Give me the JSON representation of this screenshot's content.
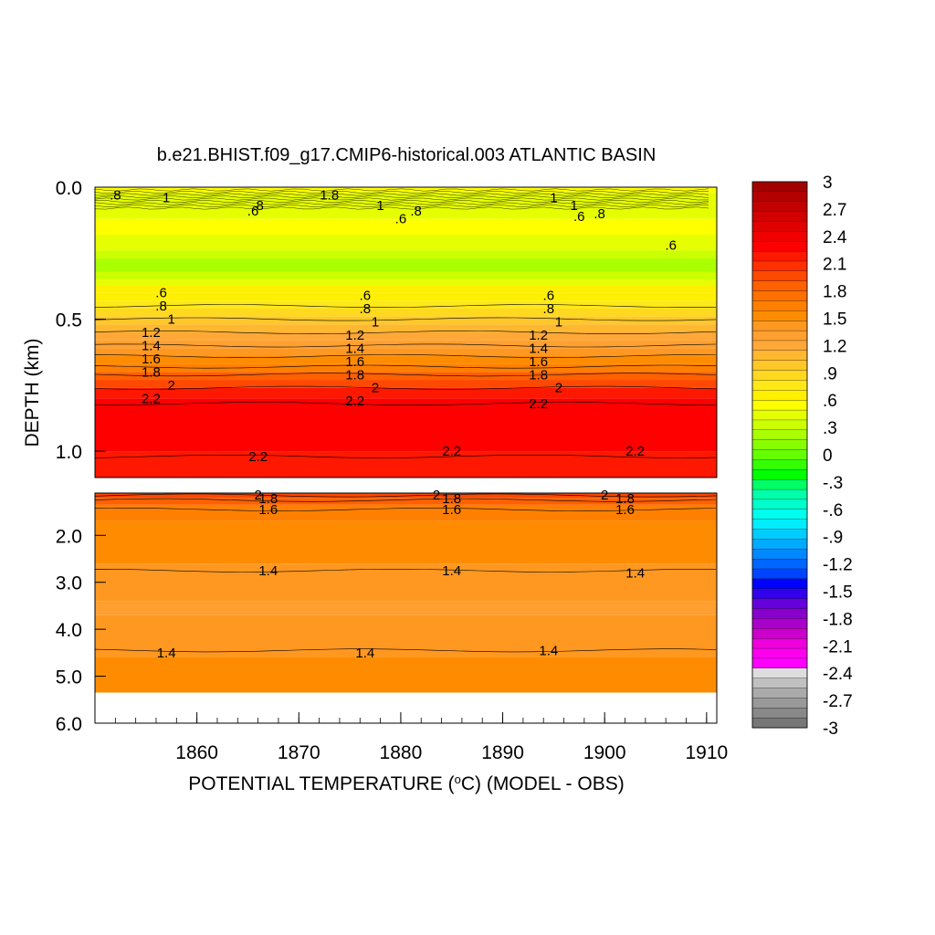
{
  "chart_data": {
    "type": "heatmap",
    "title": "b.e21.BHIST.f09_g17.CMIP6-historical.003 ATLANTIC BASIN",
    "xlabel_prefix": "POTENTIAL TEMPERATURE (",
    "xlabel_unit_sup": "o",
    "xlabel_suffix": "C) (MODEL - OBS)",
    "ylabel": "DEPTH (km)",
    "xlim": [
      1850,
      1911
    ],
    "x_ticks": [
      1860,
      1870,
      1880,
      1890,
      1900,
      1910
    ],
    "upper_panel": {
      "ylim": [
        0.0,
        1.1
      ],
      "y_ticks": [
        "0.0",
        "0.5",
        "1.0"
      ],
      "y_tick_values": [
        0.0,
        0.5,
        1.0
      ]
    },
    "lower_panel": {
      "ylim": [
        1.1,
        6.0
      ],
      "y_ticks": [
        "2.0",
        "3.0",
        "4.0",
        "5.0",
        "6.0"
      ],
      "y_tick_values": [
        2.0,
        3.0,
        4.0,
        5.0,
        6.0
      ],
      "data_bottom_depth": 5.35
    },
    "colorbar": {
      "labels": [
        "3",
        "2.7",
        "2.4",
        "2.1",
        "1.8",
        "1.5",
        "1.2",
        ".9",
        ".6",
        ".3",
        "0",
        "-.3",
        "-.6",
        "-.9",
        "-1.2",
        "-1.5",
        "-1.8",
        "-2.1",
        "-2.4",
        "-2.7",
        "-3"
      ],
      "range": [
        -3,
        3
      ],
      "colors": [
        "#a50000",
        "#b40000",
        "#c30000",
        "#d20000",
        "#e10000",
        "#f00000",
        "#ff0000",
        "#ff1800",
        "#ff3000",
        "#ff4800",
        "#ff6000",
        "#ff7000",
        "#ff8000",
        "#ff8c00",
        "#ff9820",
        "#ffa030",
        "#ffa838",
        "#ffb830",
        "#ffc828",
        "#ffd820",
        "#ffe818",
        "#fff000",
        "#ffff00",
        "#e6ff00",
        "#ccff00",
        "#aaff00",
        "#88ff00",
        "#66ff00",
        "#33ff00",
        "#00ff00",
        "#00ff66",
        "#00ffaa",
        "#00ffcc",
        "#00ffee",
        "#00eeff",
        "#00ccff",
        "#00aaff",
        "#0088ff",
        "#0066ff",
        "#0044ff",
        "#0000ff",
        "#3300ee",
        "#6600dd",
        "#8800cc",
        "#aa00cc",
        "#cc00cc",
        "#ee00dd",
        "#ff00ee",
        "#ff00ff",
        "#dddddd",
        "#c0c0c0",
        "#aaaaaa",
        "#999999",
        "#888888",
        "#777777"
      ]
    },
    "upper_bands": [
      {
        "depth": 0.02,
        "value": 0.55
      },
      {
        "depth": 0.06,
        "value": 0.45
      },
      {
        "depth": 0.12,
        "value": 0.4
      },
      {
        "depth": 0.18,
        "value": 0.5
      },
      {
        "depth": 0.24,
        "value": 0.45
      },
      {
        "depth": 0.27,
        "value": 0.3
      },
      {
        "depth": 0.32,
        "value": 0.25
      },
      {
        "depth": 0.35,
        "value": 0.3
      },
      {
        "depth": 0.37,
        "value": 0.45
      },
      {
        "depth": 0.4,
        "value": 0.6
      },
      {
        "depth": 0.43,
        "value": 0.7
      },
      {
        "depth": 0.46,
        "value": 0.8
      },
      {
        "depth": 0.49,
        "value": 0.9
      },
      {
        "depth": 0.52,
        "value": 1.0
      },
      {
        "depth": 0.55,
        "value": 1.1
      },
      {
        "depth": 0.58,
        "value": 1.2
      },
      {
        "depth": 0.61,
        "value": 1.3
      },
      {
        "depth": 0.64,
        "value": 1.4
      },
      {
        "depth": 0.67,
        "value": 1.5
      },
      {
        "depth": 0.7,
        "value": 1.65
      },
      {
        "depth": 0.73,
        "value": 1.8
      },
      {
        "depth": 0.76,
        "value": 2.0
      },
      {
        "depth": 0.8,
        "value": 2.2
      },
      {
        "depth": 1.0,
        "value": 2.3
      },
      {
        "depth": 1.1,
        "value": 2.2
      }
    ],
    "lower_bands": [
      {
        "depth": 1.2,
        "value": 2.0
      },
      {
        "depth": 1.35,
        "value": 1.8
      },
      {
        "depth": 1.7,
        "value": 1.6
      },
      {
        "depth": 2.6,
        "value": 1.5
      },
      {
        "depth": 3.4,
        "value": 1.45
      },
      {
        "depth": 3.7,
        "value": 1.35
      },
      {
        "depth": 4.6,
        "value": 1.45
      },
      {
        "depth": 5.35,
        "value": 1.5
      }
    ],
    "contour_lines": [
      {
        "panel": "upper",
        "depth": 0.45,
        "value": ".6"
      },
      {
        "panel": "upper",
        "depth": 0.5,
        "value": ".8"
      },
      {
        "panel": "upper",
        "depth": 0.55,
        "value": "1"
      },
      {
        "panel": "upper",
        "depth": 0.6,
        "value": "1.2"
      },
      {
        "panel": "upper",
        "depth": 0.64,
        "value": "1.4"
      },
      {
        "panel": "upper",
        "depth": 0.68,
        "value": "1.6"
      },
      {
        "panel": "upper",
        "depth": 0.71,
        "value": "1.8"
      },
      {
        "panel": "upper",
        "depth": 0.76,
        "value": "2"
      },
      {
        "panel": "upper",
        "depth": 0.82,
        "value": "2.2"
      },
      {
        "panel": "upper",
        "depth": 1.02,
        "value": "2.2"
      },
      {
        "panel": "lower",
        "depth": 1.15,
        "value": "2"
      },
      {
        "panel": "lower",
        "depth": 1.25,
        "value": "1.8"
      },
      {
        "panel": "lower",
        "depth": 1.45,
        "value": "1.6"
      },
      {
        "panel": "lower",
        "depth": 2.75,
        "value": "1.4"
      },
      {
        "panel": "lower",
        "depth": 4.45,
        "value": "1.4"
      }
    ],
    "contour_labels": [
      {
        "year": 1852,
        "depth": 0.03,
        "text": ".8"
      },
      {
        "year": 1857,
        "depth": 0.04,
        "text": "1"
      },
      {
        "year": 1866,
        "depth": 0.07,
        "text": ".8"
      },
      {
        "year": 1865.5,
        "depth": 0.09,
        "text": ".6"
      },
      {
        "year": 1873,
        "depth": 0.03,
        "text": "1.8"
      },
      {
        "year": 1878,
        "depth": 0.07,
        "text": "1"
      },
      {
        "year": 1880,
        "depth": 0.12,
        "text": ".6"
      },
      {
        "year": 1881.5,
        "depth": 0.09,
        "text": ".8"
      },
      {
        "year": 1895,
        "depth": 0.04,
        "text": "1"
      },
      {
        "year": 1897,
        "depth": 0.07,
        "text": "1"
      },
      {
        "year": 1897.5,
        "depth": 0.11,
        "text": ".6"
      },
      {
        "year": 1899.5,
        "depth": 0.1,
        "text": ".8"
      },
      {
        "year": 1906.5,
        "depth": 0.22,
        "text": ".6"
      },
      {
        "year": 1856.5,
        "depth": 0.4,
        "text": ".6"
      },
      {
        "year": 1856.5,
        "depth": 0.45,
        "text": ".8"
      },
      {
        "year": 1857.5,
        "depth": 0.5,
        "text": "1"
      },
      {
        "year": 1855.5,
        "depth": 0.55,
        "text": "1.2"
      },
      {
        "year": 1855.5,
        "depth": 0.6,
        "text": "1.4"
      },
      {
        "year": 1855.5,
        "depth": 0.65,
        "text": "1.6"
      },
      {
        "year": 1855.5,
        "depth": 0.7,
        "text": "1.8"
      },
      {
        "year": 1857.5,
        "depth": 0.75,
        "text": "2"
      },
      {
        "year": 1855.5,
        "depth": 0.8,
        "text": "2.2"
      },
      {
        "year": 1866,
        "depth": 1.02,
        "text": "2.2"
      },
      {
        "year": 1876.5,
        "depth": 0.41,
        "text": ".6"
      },
      {
        "year": 1876.5,
        "depth": 0.46,
        "text": ".8"
      },
      {
        "year": 1877.5,
        "depth": 0.51,
        "text": "1"
      },
      {
        "year": 1875.5,
        "depth": 0.56,
        "text": "1.2"
      },
      {
        "year": 1875.5,
        "depth": 0.61,
        "text": "1.4"
      },
      {
        "year": 1875.5,
        "depth": 0.66,
        "text": "1.6"
      },
      {
        "year": 1875.5,
        "depth": 0.71,
        "text": "1.8"
      },
      {
        "year": 1877.5,
        "depth": 0.76,
        "text": "2"
      },
      {
        "year": 1875.5,
        "depth": 0.81,
        "text": "2.2"
      },
      {
        "year": 1885,
        "depth": 1.0,
        "text": "2.2"
      },
      {
        "year": 1894.5,
        "depth": 0.41,
        "text": ".6"
      },
      {
        "year": 1894.5,
        "depth": 0.46,
        "text": ".8"
      },
      {
        "year": 1895.5,
        "depth": 0.51,
        "text": "1"
      },
      {
        "year": 1893.5,
        "depth": 0.56,
        "text": "1.2"
      },
      {
        "year": 1893.5,
        "depth": 0.61,
        "text": "1.4"
      },
      {
        "year": 1893.5,
        "depth": 0.66,
        "text": "1.6"
      },
      {
        "year": 1893.5,
        "depth": 0.71,
        "text": "1.8"
      },
      {
        "year": 1895.5,
        "depth": 0.76,
        "text": "2"
      },
      {
        "year": 1893.5,
        "depth": 0.82,
        "text": "2.2"
      },
      {
        "year": 1903,
        "depth": 1.0,
        "text": "2.2"
      },
      {
        "year": 1866,
        "depth": 1.14,
        "text": "2"
      },
      {
        "year": 1867,
        "depth": 1.22,
        "text": "1.8"
      },
      {
        "year": 1867,
        "depth": 1.45,
        "text": "1.6"
      },
      {
        "year": 1883.5,
        "depth": 1.14,
        "text": "2"
      },
      {
        "year": 1885,
        "depth": 1.22,
        "text": "1.8"
      },
      {
        "year": 1885,
        "depth": 1.45,
        "text": "1.6"
      },
      {
        "year": 1900,
        "depth": 1.14,
        "text": "2"
      },
      {
        "year": 1902,
        "depth": 1.22,
        "text": "1.8"
      },
      {
        "year": 1902,
        "depth": 1.45,
        "text": "1.6"
      },
      {
        "year": 1867,
        "depth": 2.75,
        "text": "1.4"
      },
      {
        "year": 1885,
        "depth": 2.75,
        "text": "1.4"
      },
      {
        "year": 1903,
        "depth": 2.8,
        "text": "1.4"
      },
      {
        "year": 1857,
        "depth": 4.5,
        "text": "1.4"
      },
      {
        "year": 1876.5,
        "depth": 4.5,
        "text": "1.4"
      },
      {
        "year": 1894.5,
        "depth": 4.45,
        "text": "1.4"
      }
    ]
  }
}
